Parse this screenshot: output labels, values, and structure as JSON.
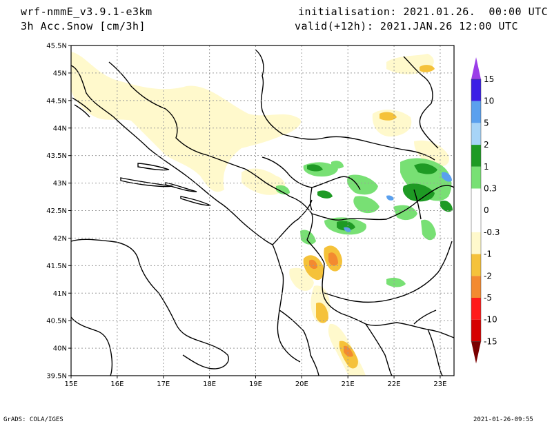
{
  "header": {
    "model": "wrf-nmmE_v3.9.1-e3km",
    "field": "3h Acc.Snow [cm/3h]",
    "init": "initialisation: 2021.01.26.  00:00 UTC",
    "valid": "valid(+12h): 2021.JAN.26 12:00 UTC"
  },
  "axes": {
    "lat_labels": [
      "45.5N",
      "45N",
      "44.5N",
      "44N",
      "43.5N",
      "43N",
      "42.5N",
      "42N",
      "41.5N",
      "41N",
      "40.5N",
      "40N",
      "39.5N"
    ],
    "lon_labels": [
      "15E",
      "16E",
      "17E",
      "18E",
      "19E",
      "20E",
      "21E",
      "22E",
      "23E"
    ],
    "lat_values": [
      45.5,
      45,
      44.5,
      44,
      43.5,
      43,
      42.5,
      42,
      41.5,
      41,
      40.5,
      40,
      39.5
    ],
    "lon_values": [
      15,
      16,
      17,
      18,
      19,
      20,
      21,
      22,
      23
    ],
    "lon_range": [
      15,
      23.3
    ],
    "lat_range": [
      39.5,
      45.5
    ],
    "grid": true
  },
  "colorbar": {
    "labels": [
      "15",
      "10",
      "5",
      "2",
      "1",
      "0.3",
      "0",
      "-0.3",
      "-1",
      "-2",
      "-5",
      "-10",
      "-15"
    ],
    "colors": [
      "#3a1fe6",
      "#5aa0ee",
      "#a7d4f7",
      "#1e9a24",
      "#78e074",
      "#ffffff",
      "#ffffff",
      "#fff9cc",
      "#f5c23a",
      "#f38a30",
      "#ff1a1a",
      "#d60000",
      "#9a0000"
    ],
    "top_arrow_color": "#9b3ee8",
    "bottom_arrow_color": "#7a0000"
  },
  "footer": {
    "left": "GrADS: COLA/IGES",
    "right": "2021-01-26-09:55"
  }
}
